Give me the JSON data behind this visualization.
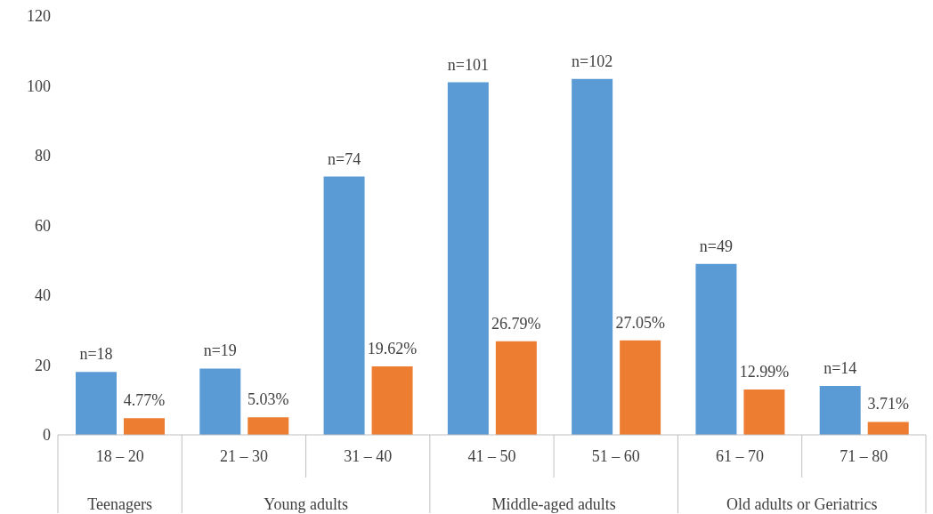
{
  "chart_data": {
    "type": "bar",
    "categories": [
      "18 – 20",
      "21 – 30",
      "31 – 40",
      "41 – 50",
      "51 – 60",
      "61 – 70",
      "71 – 80"
    ],
    "series": [
      {
        "color": "#5b9bd5",
        "values": [
          18,
          19,
          74,
          101,
          102,
          49,
          14
        ],
        "value_labels": [
          "n=18",
          "n=19",
          "n=74",
          "n=101",
          "n=102",
          "n=49",
          "n=14"
        ]
      },
      {
        "color": "#ed7d31",
        "values": [
          4.77,
          5.03,
          19.62,
          26.79,
          27.05,
          12.99,
          3.71
        ],
        "value_labels": [
          "4.77%",
          "5.03%",
          "19.62%",
          "26.79%",
          "27.05%",
          "12.99%",
          "3.71%"
        ]
      }
    ],
    "ylim": [
      0,
      120
    ],
    "yticks": [
      0,
      20,
      40,
      60,
      80,
      100,
      120
    ],
    "grid": false,
    "legend": false,
    "annotations": [
      "Teenagers",
      "Young adults",
      "Middle-aged adults",
      "Old adults or Geriatrics"
    ]
  }
}
